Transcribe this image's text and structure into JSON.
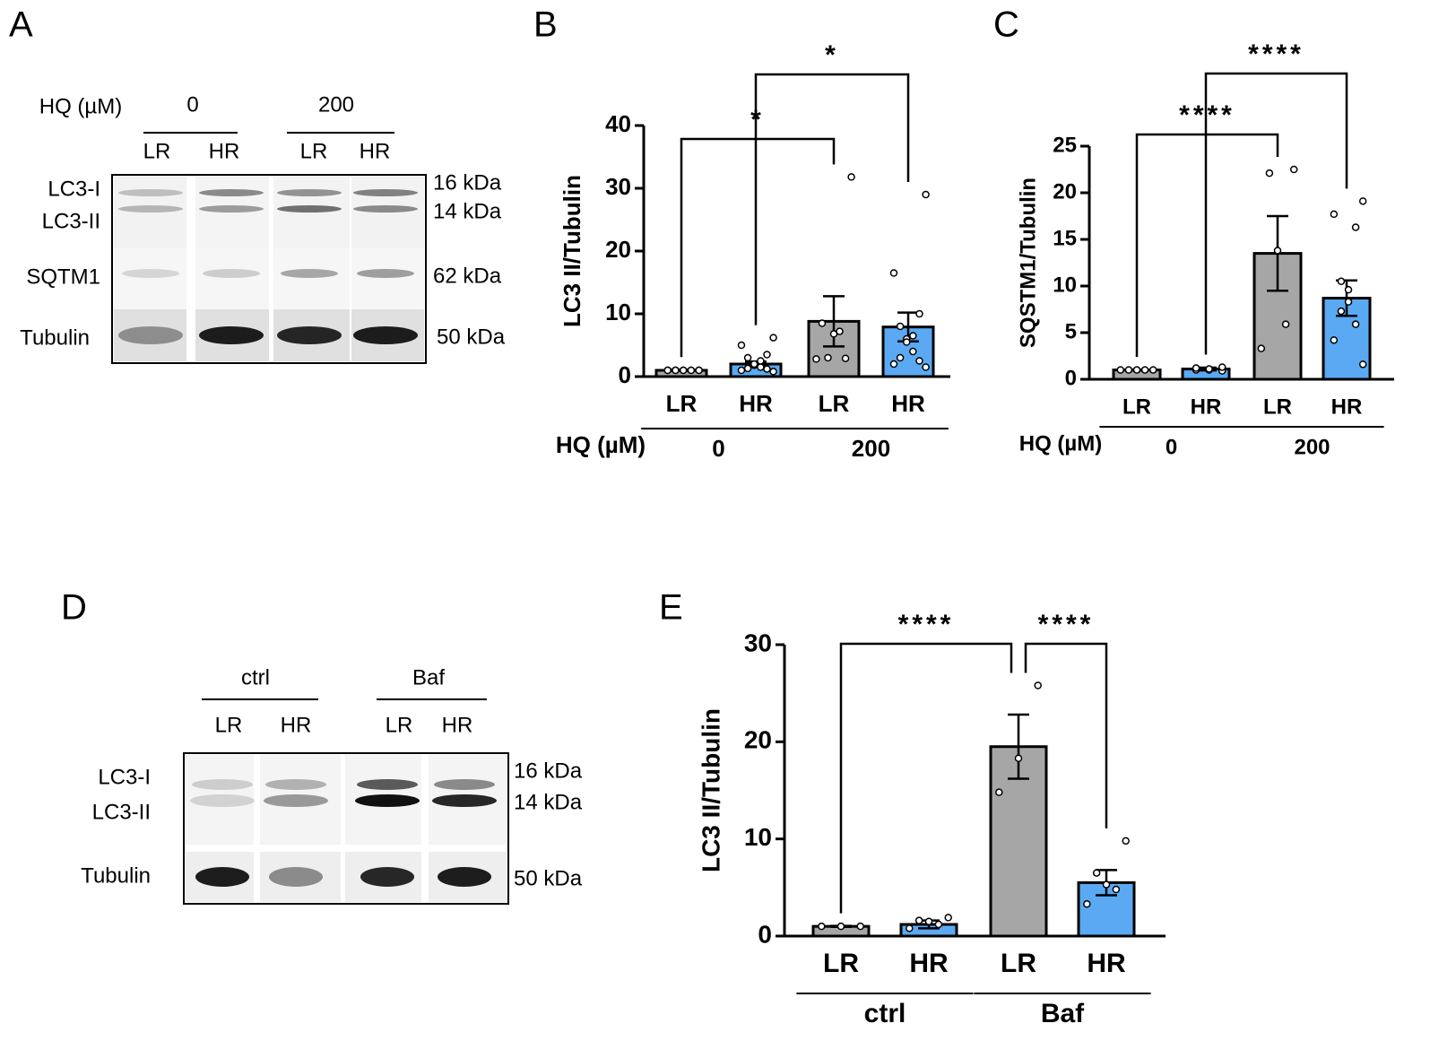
{
  "panel_labels": [
    "A",
    "B",
    "C",
    "D",
    "E"
  ],
  "blot_a": {
    "treatment_label": "HQ (µM)",
    "groups": [
      "0",
      "200"
    ],
    "lanes": [
      "LR",
      "HR",
      "LR",
      "HR"
    ],
    "bands": [
      "LC3-I",
      "LC3-II",
      "SQTM1",
      "Tubulin"
    ],
    "sizes": [
      "16 kDa",
      "14 kDa",
      "62 kDa",
      "50 kDa"
    ]
  },
  "blot_d": {
    "groups": [
      "ctrl",
      "Baf"
    ],
    "lanes": [
      "LR",
      "HR",
      "LR",
      "HR"
    ],
    "bands": [
      "LC3-I",
      "LC3-II",
      "Tubulin"
    ],
    "sizes": [
      "16 kDa",
      "14 kDa",
      "50 kDa"
    ]
  },
  "chart_data": [
    {
      "type": "bar",
      "y_label": "LC3 II/Tubulin",
      "group_label": "HQ (µM)",
      "groups": [
        "0",
        "200"
      ],
      "categories": [
        "LR",
        "HR",
        "LR",
        "HR"
      ],
      "values": [
        1.0,
        2.0,
        8.8,
        7.9
      ],
      "errors": [
        0.1,
        0.4,
        4.0,
        2.3
      ],
      "colors": [
        "#a6a6a6",
        "#5aa9f2",
        "#a6a6a6",
        "#5aa9f2"
      ],
      "points": [
        [
          1,
          1,
          1,
          1,
          1,
          1,
          1,
          1,
          1,
          1
        ],
        [
          0.8,
          1,
          1.2,
          1.3,
          1.5,
          1.8,
          2,
          2.5,
          3,
          3.5,
          5,
          6.2
        ],
        [
          31.8,
          8.5,
          7.2,
          6.8,
          3,
          2.9,
          2.8
        ],
        [
          29,
          16.5,
          10,
          8,
          6.5,
          6,
          5.5,
          4,
          3,
          2.5,
          2,
          1.5
        ]
      ],
      "comparisons": [
        {
          "bars": [
            0,
            2
          ],
          "label": "*"
        },
        {
          "bars": [
            1,
            3
          ],
          "label": "*"
        }
      ],
      "ylim": [
        0,
        40
      ],
      "yticks": [
        0,
        10,
        20,
        30,
        40
      ]
    },
    {
      "type": "bar",
      "y_label": "SQSTM1/Tubulin",
      "group_label": "HQ (µM)",
      "groups": [
        "0",
        "200"
      ],
      "categories": [
        "LR",
        "HR",
        "LR",
        "HR"
      ],
      "values": [
        1.0,
        1.1,
        13.5,
        8.7
      ],
      "errors": [
        0.05,
        0.15,
        4.0,
        1.9
      ],
      "colors": [
        "#a6a6a6",
        "#5aa9f2",
        "#a6a6a6",
        "#5aa9f2"
      ],
      "points": [
        [
          1,
          1,
          1,
          1,
          1
        ],
        [
          0.9,
          1,
          1,
          1.1,
          1.2,
          1.3
        ],
        [
          22.5,
          22.1,
          13.8,
          5.9,
          3.3
        ],
        [
          19.1,
          17.7,
          16.3,
          10.5,
          9.6,
          8.3,
          7.3,
          5.9,
          4.2,
          1.6
        ]
      ],
      "comparisons": [
        {
          "bars": [
            0,
            2
          ],
          "label": "****"
        },
        {
          "bars": [
            1,
            3
          ],
          "label": "****"
        }
      ],
      "ylim": [
        0,
        25
      ],
      "yticks": [
        0,
        5,
        10,
        15,
        20,
        25
      ]
    },
    {
      "type": "bar",
      "y_label": "LC3 II/Tubulin",
      "groups": [
        "ctrl",
        "Baf"
      ],
      "categories": [
        "LR",
        "HR",
        "LR",
        "HR"
      ],
      "values": [
        1.0,
        1.2,
        19.5,
        5.5
      ],
      "errors": [
        0.05,
        0.4,
        3.3,
        1.3
      ],
      "colors": [
        "#a6a6a6",
        "#5aa9f2",
        "#a6a6a6",
        "#5aa9f2"
      ],
      "points": [
        [
          1,
          1,
          1
        ],
        [
          1.9,
          1.6,
          1.5,
          1.2,
          0.8
        ],
        [
          25.8,
          18.3,
          14.8
        ],
        [
          9.8,
          6.5,
          5.3,
          4.8,
          3.3
        ]
      ],
      "comparisons": [
        {
          "bars": [
            0,
            2
          ],
          "label": "****"
        },
        {
          "bars": [
            2,
            3
          ],
          "label": "****"
        }
      ],
      "ylim": [
        0,
        30
      ],
      "yticks": [
        0,
        10,
        20,
        30
      ]
    }
  ]
}
